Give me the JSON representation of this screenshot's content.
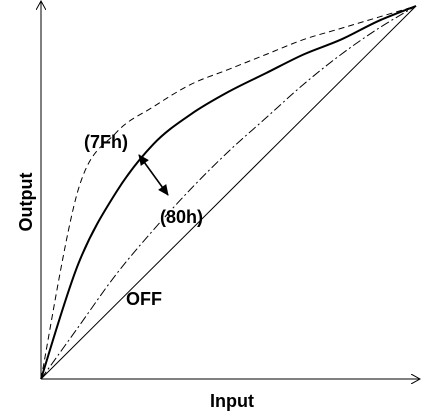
{
  "chart_data": {
    "type": "line",
    "xlabel": "Input",
    "ylabel": "Output",
    "xlim": [
      0,
      1
    ],
    "ylim": [
      0,
      1
    ],
    "grid": false,
    "series": [
      {
        "label": "OFF",
        "style": "solid-thin",
        "x": [
          0,
          1
        ],
        "y": [
          0,
          1
        ]
      },
      {
        "style": "dash-dot",
        "x": [
          0,
          0.1,
          0.2,
          0.3,
          0.4,
          0.5,
          0.6,
          0.7,
          0.8,
          0.9,
          1
        ],
        "y": [
          0,
          0.14,
          0.28,
          0.4,
          0.51,
          0.61,
          0.7,
          0.79,
          0.87,
          0.94,
          1
        ]
      },
      {
        "label": "(80h)",
        "style": "solid-thick",
        "x": [
          0,
          0.1,
          0.2,
          0.3,
          0.4,
          0.5,
          0.6,
          0.7,
          0.8,
          0.9,
          1
        ],
        "y": [
          0,
          0.31,
          0.5,
          0.63,
          0.71,
          0.77,
          0.82,
          0.87,
          0.91,
          0.96,
          1
        ]
      },
      {
        "label": "(7Fh)",
        "style": "dashed",
        "x": [
          0,
          0.1,
          0.2,
          0.3,
          0.4,
          0.5,
          0.6,
          0.7,
          0.8,
          0.9,
          1
        ],
        "y": [
          0,
          0.51,
          0.66,
          0.73,
          0.79,
          0.83,
          0.87,
          0.91,
          0.94,
          0.97,
          1
        ]
      }
    ],
    "annotations": {
      "label_7fh": "(7Fh)",
      "label_80h": "(80h)",
      "label_off": "OFF"
    }
  }
}
